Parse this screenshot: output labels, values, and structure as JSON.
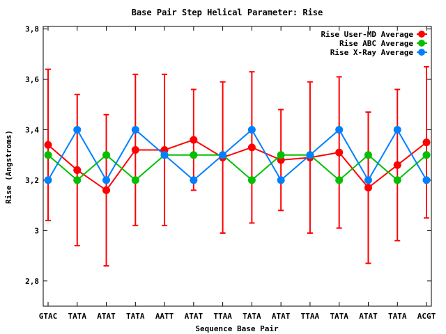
{
  "chart_data": {
    "type": "line",
    "title": "Base Pair Step Helical Parameter: Rise",
    "xlabel": "Sequence Base Pair",
    "ylabel": "Rise (Angstroms)",
    "categories": [
      "GTAC",
      "TATA",
      "ATAT",
      "TATA",
      "AATT",
      "ATAT",
      "TTAA",
      "TATA",
      "ATAT",
      "TTAA",
      "TATA",
      "ATAT",
      "TATA",
      "ACGT"
    ],
    "ylim": [
      2.7,
      3.81
    ],
    "yticks": [
      2.8,
      3.0,
      3.2,
      3.4,
      3.6,
      3.8
    ],
    "ytick_labels": [
      "2,8",
      "3",
      "3,2",
      "3,4",
      "3,6",
      "3,8"
    ],
    "legend_position": "top-right",
    "grid": false,
    "series": [
      {
        "name": "Rise User-MD Average",
        "color": "#ff0000",
        "values": [
          3.34,
          3.24,
          3.16,
          3.32,
          3.32,
          3.36,
          3.29,
          3.33,
          3.28,
          3.29,
          3.31,
          3.17,
          3.26,
          3.35
        ],
        "error_low": [
          3.04,
          2.94,
          2.86,
          3.02,
          3.02,
          3.16,
          2.99,
          3.03,
          3.08,
          2.99,
          3.01,
          2.87,
          2.96,
          3.05
        ],
        "error_high": [
          3.64,
          3.54,
          3.46,
          3.62,
          3.62,
          3.56,
          3.59,
          3.63,
          3.48,
          3.59,
          3.61,
          3.47,
          3.56,
          3.65
        ]
      },
      {
        "name": "Rise ABC Average",
        "color": "#00c000",
        "values": [
          3.3,
          3.2,
          3.3,
          3.2,
          3.3,
          3.3,
          3.3,
          3.2,
          3.3,
          3.3,
          3.2,
          3.3,
          3.2,
          3.3
        ]
      },
      {
        "name": "Rise X-Ray Average",
        "color": "#0080ff",
        "values": [
          3.2,
          3.4,
          3.2,
          3.4,
          3.3,
          3.2,
          3.3,
          3.4,
          3.2,
          3.3,
          3.4,
          3.2,
          3.4,
          3.2
        ]
      }
    ]
  }
}
